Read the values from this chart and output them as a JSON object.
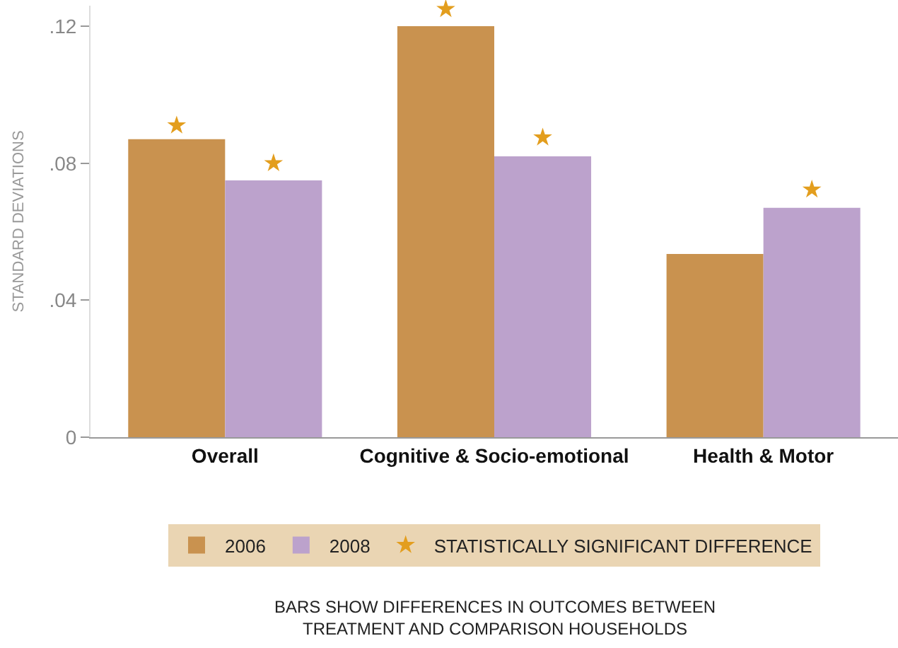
{
  "chart_data": {
    "type": "bar",
    "ylabel": "STANDARD DEVIATIONS",
    "categories": [
      "Overall",
      "Cognitive & Socio-emotional",
      "Health & Motor"
    ],
    "series": [
      {
        "name": "2006",
        "color": "#c9924f",
        "values": [
          0.087,
          0.12,
          0.0535
        ]
      },
      {
        "name": "2008",
        "color": "#bca2cc",
        "values": [
          0.075,
          0.082,
          0.067
        ]
      },
      {
        "name": "STATISTICALLY SIGNIFICANT DIFFERENCE",
        "type": "scatter",
        "color": "#e39e1e",
        "x": [
          "Overall",
          "Cognitive & Socio-emotional",
          "Health & Motor"
        ],
        "values": [
          0.091,
          0.125,
          null
        ]
      },
      {
        "type": "scatter",
        "color": "#e39e1e",
        "x": [
          "Overall",
          "Cognitive & Socio-emotional",
          "Health & Motor"
        ],
        "values": [
          0.08,
          0.0875,
          0.0723
        ]
      }
    ],
    "marker": "star",
    "ylim": [
      0,
      0.126
    ],
    "yticks": [
      {
        "value": 0,
        "label": "0"
      },
      {
        "value": 0.04,
        "label": ".04"
      },
      {
        "value": 0.08,
        "label": ".08"
      },
      {
        "value": 0.12,
        "label": ".12"
      }
    ],
    "legend": "bottom",
    "annotations": [
      "BARS SHOW DIFFERENCES IN OUTCOMES BETWEEN\nTREATMENT AND COMPARISON HOUSEHOLDS"
    ]
  }
}
